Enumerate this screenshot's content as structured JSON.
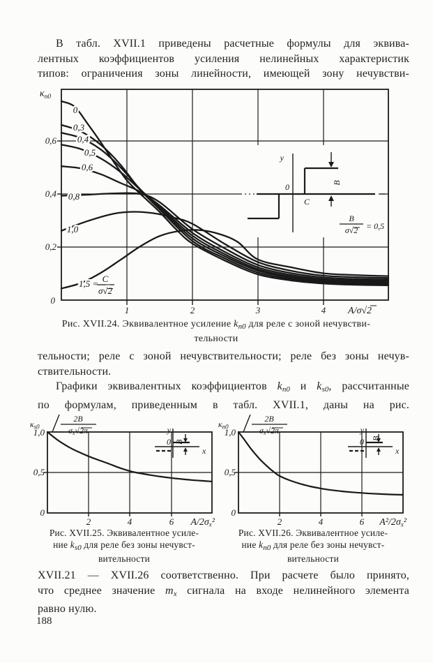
{
  "document": {
    "page_number": "188",
    "p1": {
      "l1": "В табл. XVII.1 приведены расчетные формулы для эквива-",
      "l2": "лентных коэффициентов усиления нелинейных характеристик",
      "l3": "типов: ограничения зоны линейности, имеющей зону нечувстви-"
    },
    "p2": {
      "l1": "тельности; реле с зоной нечувствительности; реле без зоны нечув-",
      "l2": "ствительности.",
      "l3_pre": "Графики эквивалентных коэффициентов ",
      "l3_k1": "k",
      "l3_k1sub": "п0",
      "l3_mid": " и ",
      "l3_k2": "k",
      "l3_k2sub": "s0",
      "l3_post": ", рассчитанные",
      "l4": "по формулам, приведенным в табл. XVII.1, даны на рис."
    },
    "p3": {
      "l1": "XVII.21 — XVII.26 соответственно. При расчете было принято,",
      "l2_pre": "что среднее значение ",
      "l2_m": "m",
      "l2_msub": "x",
      "l2_post": " сигнала на входе нелинейного элемента",
      "l3": "равно нулю."
    },
    "cap24": {
      "pre": "Рис. XVII.24. Эквивалентное усиление ",
      "k": "k",
      "ksub": "п0",
      "post": " для реле с зоной нечувстви-",
      "line2": "тельности"
    },
    "cap25": {
      "l1": "Рис. XVII.25. Эквивалентное усиле-",
      "l2_pre": "ние ",
      "l2_k": "k",
      "l2_ksub": "s0",
      "l2_post": " для реле без зоны нечувст-",
      "l3": "вительности"
    },
    "cap26": {
      "l1": "Рис. XVII.26. Эквивалентное усиле-",
      "l2_pre": "ние ",
      "l2_k": "k",
      "l2_ksub": "п0",
      "l2_post": " для реле без зоны нечувст-",
      "l3": "вительности"
    }
  },
  "chart_data": [
    {
      "id": "fig24",
      "type": "line",
      "title": "Рис. XVII.24. Эквивалентное усиление kп0 для реле с зоной нечувствительности",
      "xlabel": "A/σ√2",
      "ylabel": "кп0",
      "ylabel_main": "к",
      "ylabel_sub": "п0",
      "xlim": [
        0,
        5
      ],
      "ylim": [
        0,
        0.8
      ],
      "grid": true,
      "legend_position": "labels on curves",
      "xticks": [
        1,
        2,
        3,
        4
      ],
      "xtick_labels": [
        "1",
        "2",
        "3",
        "4"
      ],
      "yticks": [
        0,
        0.2,
        0.4,
        0.6
      ],
      "ytick_labels": [
        "0",
        "0,2",
        "0,4",
        "0,6"
      ],
      "inset": {
        "y_axis": "y",
        "origin": "0",
        "c_label": "C",
        "b_label": "B",
        "formula_num": "B",
        "formula_den": "σ√2",
        "formula_eq": "= 0,5"
      },
      "series15_label": {
        "pre": "1,5 =",
        "num": "C",
        "den": "σ√2"
      },
      "series": [
        {
          "name": "0",
          "points": [
            [
              0,
              0.755
            ],
            [
              0.2,
              0.735
            ],
            [
              0.4,
              0.67
            ],
            [
              0.6,
              0.6
            ],
            [
              0.8,
              0.525
            ],
            [
              1,
              0.455
            ],
            [
              1.2,
              0.405
            ],
            [
              1.5,
              0.335
            ],
            [
              1.75,
              0.27
            ],
            [
              2,
              0.215
            ],
            [
              2.5,
              0.15
            ],
            [
              3,
              0.098
            ],
            [
              3.5,
              0.075
            ],
            [
              4,
              0.063
            ],
            [
              4.5,
              0.058
            ],
            [
              5,
              0.056
            ]
          ]
        },
        {
          "name": "0,3",
          "points": [
            [
              0,
              0.665
            ],
            [
              0.3,
              0.64
            ],
            [
              0.6,
              0.59
            ],
            [
              0.9,
              0.515
            ],
            [
              1.2,
              0.42
            ],
            [
              1.5,
              0.345
            ],
            [
              2,
              0.225
            ],
            [
              2.5,
              0.158
            ],
            [
              3,
              0.105
            ],
            [
              3.5,
              0.08
            ],
            [
              4,
              0.067
            ],
            [
              4.5,
              0.062
            ],
            [
              5,
              0.06
            ]
          ]
        },
        {
          "name": "0,4",
          "points": [
            [
              0,
              0.635
            ],
            [
              0.3,
              0.615
            ],
            [
              0.6,
              0.572
            ],
            [
              0.9,
              0.505
            ],
            [
              1.2,
              0.422
            ],
            [
              1.5,
              0.35
            ],
            [
              2,
              0.235
            ],
            [
              2.5,
              0.166
            ],
            [
              3,
              0.112
            ],
            [
              3.5,
              0.085
            ],
            [
              4,
              0.071
            ],
            [
              4.5,
              0.066
            ],
            [
              5,
              0.064
            ]
          ]
        },
        {
          "name": "0,5",
          "points": [
            [
              0,
              0.59
            ],
            [
              0.3,
              0.573
            ],
            [
              0.6,
              0.538
            ],
            [
              0.9,
              0.487
            ],
            [
              1.2,
              0.42
            ],
            [
              1.5,
              0.355
            ],
            [
              2,
              0.245
            ],
            [
              2.5,
              0.174
            ],
            [
              3,
              0.118
            ],
            [
              3.5,
              0.09
            ],
            [
              4,
              0.075
            ],
            [
              4.5,
              0.07
            ],
            [
              5,
              0.068
            ]
          ]
        },
        {
          "name": "0,6",
          "points": [
            [
              0,
              0.508
            ],
            [
              0.3,
              0.5
            ],
            [
              0.6,
              0.478
            ],
            [
              0.9,
              0.445
            ],
            [
              1.2,
              0.412
            ],
            [
              1.5,
              0.36
            ],
            [
              2,
              0.256
            ],
            [
              2.5,
              0.183
            ],
            [
              3,
              0.125
            ],
            [
              3.5,
              0.096
            ],
            [
              4,
              0.08
            ],
            [
              4.5,
              0.075
            ],
            [
              5,
              0.073
            ]
          ]
        },
        {
          "name": "0,8",
          "points": [
            [
              0,
              0.396
            ],
            [
              0.4,
              0.4
            ],
            [
              0.8,
              0.405
            ],
            [
              1.2,
              0.403
            ],
            [
              1.5,
              0.372
            ],
            [
              2,
              0.27
            ],
            [
              2.5,
              0.196
            ],
            [
              3,
              0.134
            ],
            [
              3.5,
              0.103
            ],
            [
              4,
              0.086
            ],
            [
              4.5,
              0.08
            ],
            [
              5,
              0.078
            ]
          ]
        },
        {
          "name": "1,0",
          "points": [
            [
              0,
              0.263
            ],
            [
              0.4,
              0.3
            ],
            [
              0.8,
              0.328
            ],
            [
              1.1,
              0.335
            ],
            [
              1.4,
              0.33
            ],
            [
              1.7,
              0.314
            ],
            [
              2,
              0.29
            ],
            [
              2.5,
              0.213
            ],
            [
              3,
              0.145
            ],
            [
              3.5,
              0.112
            ],
            [
              4,
              0.093
            ],
            [
              4.5,
              0.087
            ],
            [
              5,
              0.084
            ]
          ]
        },
        {
          "name": "1,5",
          "custom_label": true,
          "label": "1,5 = C/σ√2",
          "points": [
            [
              0,
              0.044
            ],
            [
              0.3,
              0.065
            ],
            [
              0.6,
              0.103
            ],
            [
              0.9,
              0.152
            ],
            [
              1.2,
              0.203
            ],
            [
              1.5,
              0.243
            ],
            [
              1.8,
              0.262
            ],
            [
              2.1,
              0.266
            ],
            [
              2.4,
              0.252
            ],
            [
              2.7,
              0.22
            ],
            [
              3,
              0.155
            ],
            [
              3.5,
              0.125
            ],
            [
              4,
              0.102
            ],
            [
              4.5,
              0.095
            ],
            [
              5,
              0.091
            ]
          ]
        }
      ]
    },
    {
      "id": "fig25",
      "type": "line",
      "title": "Рис. XVII.25. Эквивалентное усиление ks0 для реле без зоны нечувствительности",
      "xlabel": "A/2σx²",
      "xlabel_pre": "A/2σ",
      "xlabel_sub": "x",
      "xlabel_post": "²",
      "ylabel": "кs0/(2B/σx√2π)",
      "ylabel_k": "к",
      "ylabel_ksub": "s0",
      "ylabel_num": "2B",
      "ylabel_den_sigma": "σ",
      "ylabel_den_sub": "x",
      "ylabel_den_post": "√2π",
      "xlim": [
        0,
        8
      ],
      "ylim": [
        0,
        1
      ],
      "grid": true,
      "xticks": [
        2,
        4,
        6
      ],
      "xtick_labels": [
        "2",
        "4",
        "6"
      ],
      "yticks": [
        0,
        0.5,
        1.0
      ],
      "ytick_labels": [
        "0",
        "0,5",
        "1,0"
      ],
      "inset": {
        "y_axis": "y",
        "origin": "0",
        "x_axis": "x",
        "b_label": "B"
      },
      "series": [
        {
          "name": "ks0",
          "points": [
            [
              0,
              1.0
            ],
            [
              0.5,
              0.9
            ],
            [
              1,
              0.82
            ],
            [
              1.5,
              0.755
            ],
            [
              2,
              0.7
            ],
            [
              2.5,
              0.652
            ],
            [
              3,
              0.607
            ],
            [
              3.5,
              0.558
            ],
            [
              4,
              0.518
            ],
            [
              4.3,
              0.5
            ],
            [
              5,
              0.468
            ],
            [
              5.5,
              0.449
            ],
            [
              6,
              0.433
            ],
            [
              6.5,
              0.419
            ],
            [
              7,
              0.407
            ],
            [
              7.5,
              0.397
            ],
            [
              8,
              0.389
            ]
          ]
        }
      ]
    },
    {
      "id": "fig26",
      "type": "line",
      "title": "Рис. XVII.26. Эквивалентное усиление kп0 для реле без зоны нечувствительности",
      "xlabel": "A²/2σx²",
      "xlabel_pre": "A²/2σ",
      "xlabel_sub": "x",
      "xlabel_post": "²",
      "ylabel": "кп0/(2B/σx√2π)",
      "ylabel_k": "к",
      "ylabel_ksub": "п0",
      "ylabel_num": "2B",
      "ylabel_den_sigma": "σ",
      "ylabel_den_sub": "x",
      "ylabel_den_post": "√2π",
      "xlim": [
        0,
        8
      ],
      "ylim": [
        0,
        1
      ],
      "grid": true,
      "xticks": [
        2,
        4,
        6
      ],
      "xtick_labels": [
        "2",
        "4",
        "6"
      ],
      "yticks": [
        0,
        0.5,
        1.0
      ],
      "ytick_labels": [
        "0",
        "0,5",
        "1,0"
      ],
      "inset": {
        "y_axis": "y",
        "origin": "0",
        "x_axis": "x",
        "b_label": "B"
      },
      "series": [
        {
          "name": "kп0",
          "points": [
            [
              0,
              1.0
            ],
            [
              0.3,
              0.9
            ],
            [
              0.6,
              0.795
            ],
            [
              1,
              0.675
            ],
            [
              1.4,
              0.575
            ],
            [
              1.7,
              0.51
            ],
            [
              2,
              0.457
            ],
            [
              2.5,
              0.402
            ],
            [
              3,
              0.36
            ],
            [
              3.5,
              0.328
            ],
            [
              4,
              0.303
            ],
            [
              4.5,
              0.283
            ],
            [
              5,
              0.268
            ],
            [
              5.5,
              0.256
            ],
            [
              6,
              0.247
            ],
            [
              6.5,
              0.239
            ],
            [
              7,
              0.233
            ],
            [
              7.5,
              0.228
            ],
            [
              8,
              0.224
            ]
          ]
        }
      ]
    }
  ]
}
